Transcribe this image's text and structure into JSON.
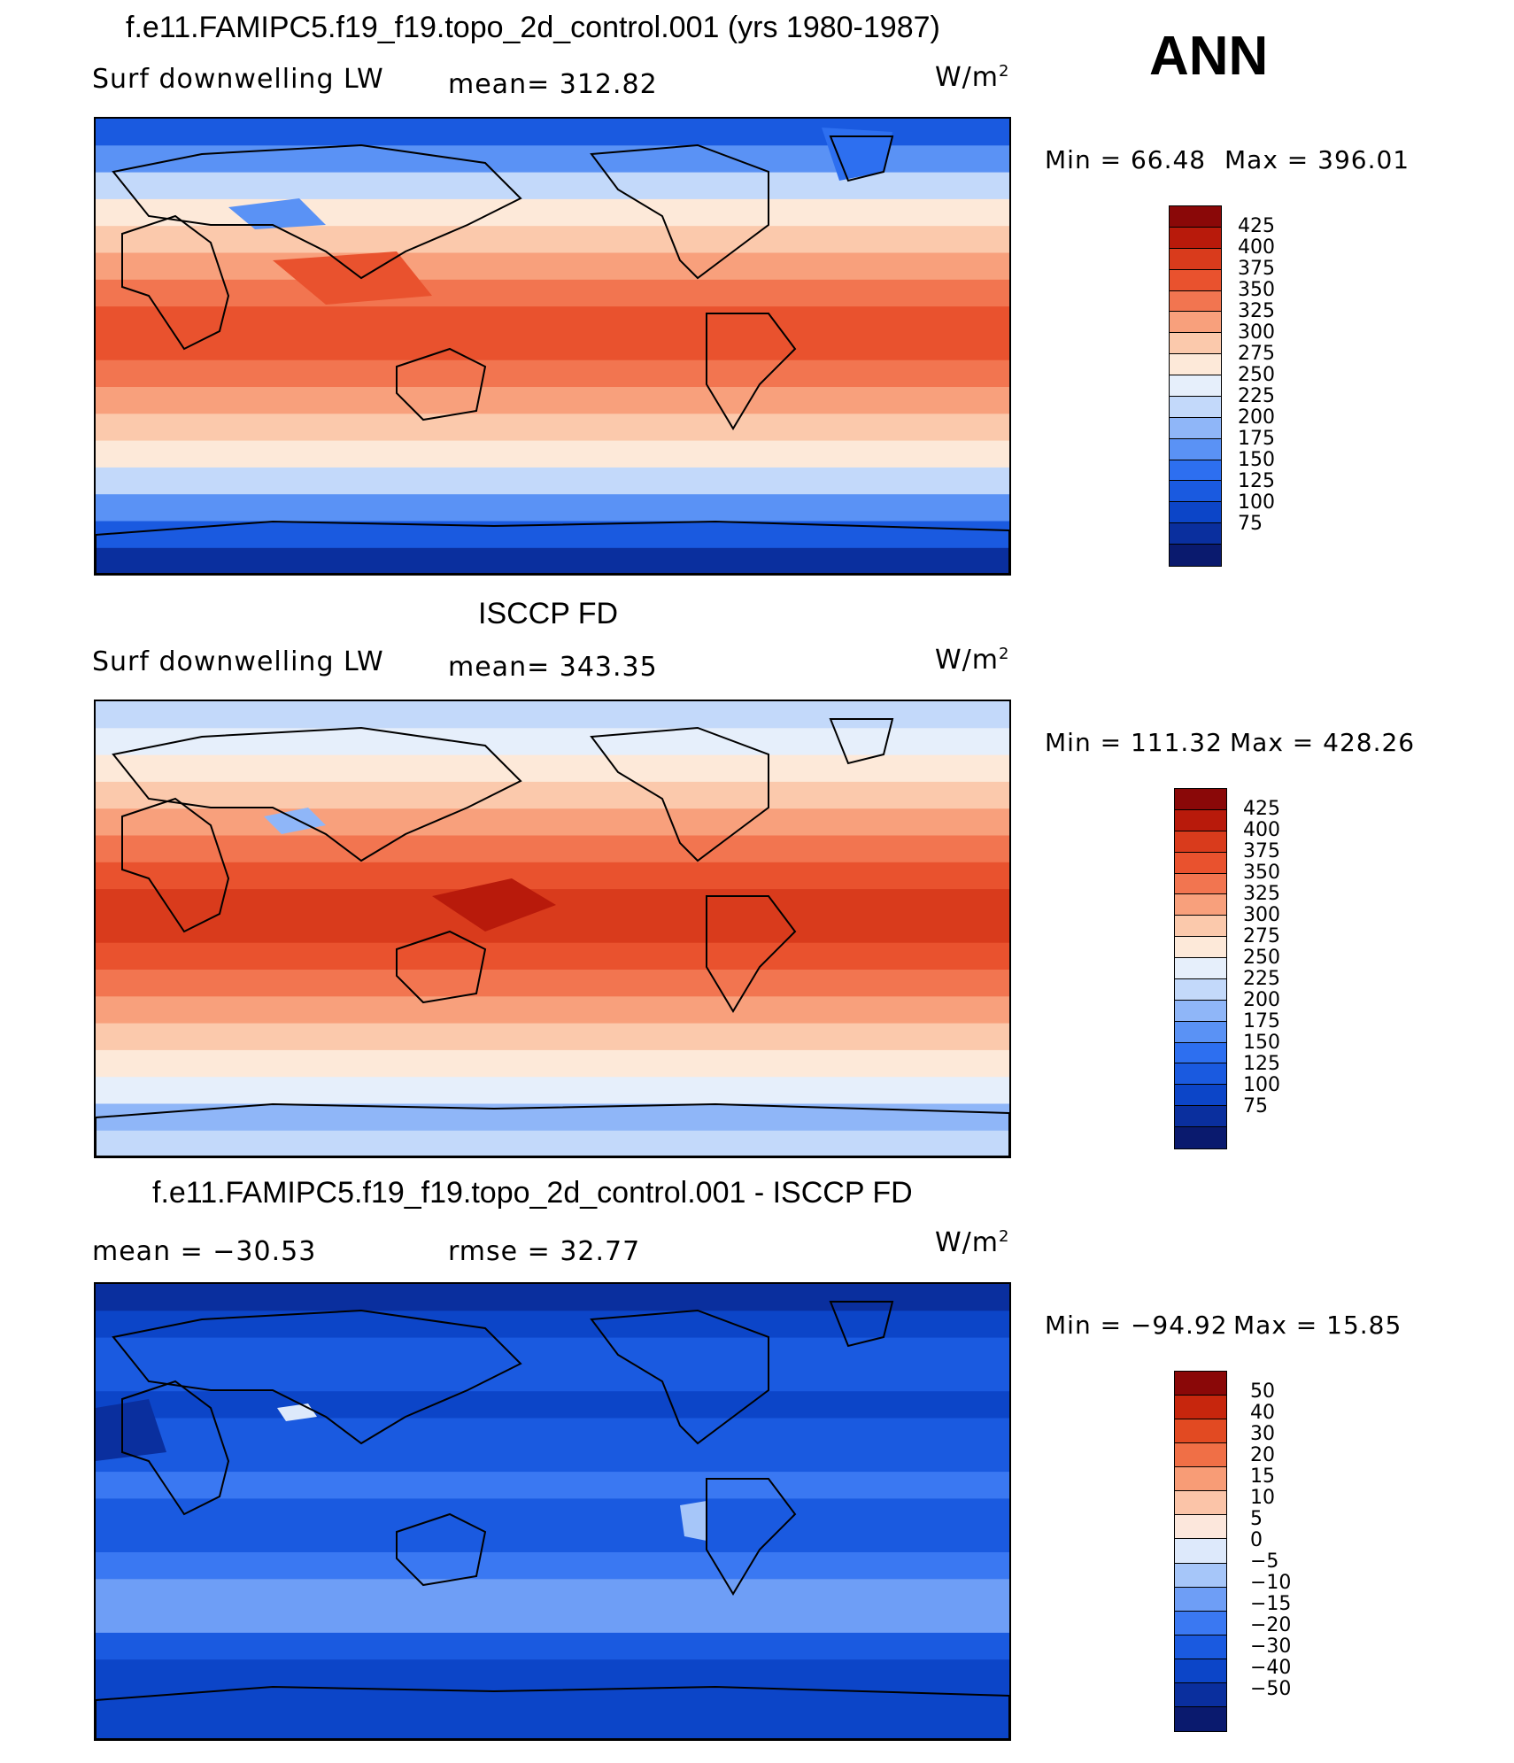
{
  "season": "ANN",
  "palette_full": [
    "#0a1a6e",
    "#0a2f9e",
    "#0c45c8",
    "#1a5ae0",
    "#2d6ff0",
    "#5a92f5",
    "#8fb6f8",
    "#c3d9fa",
    "#e6effb",
    "#fde9d9",
    "#fbc9ac",
    "#f8a07c",
    "#f27550",
    "#e9522e",
    "#d93b1c",
    "#b81a0b",
    "#8a0808"
  ],
  "palette_diff": [
    "#0a1a6e",
    "#0a2f9e",
    "#0c45c8",
    "#1a5ae0",
    "#3a78f2",
    "#6e9ef6",
    "#a6c6f9",
    "#dde9fb",
    "#fce7dc",
    "#fbc4a8",
    "#f89c76",
    "#f06f46",
    "#e24a22",
    "#c7260d",
    "#8a0808"
  ],
  "panels": [
    {
      "title": "f.e11.FAMIPC5.f19_f19.topo_2d_control.001 (yrs 1980-1987)",
      "left_label": "Surf  downwelling  LW",
      "center_label": "mean=  312.82",
      "units": "W/m",
      "units_sup": "2",
      "min_label": "Min  =    66.48",
      "max_label": "Max  =  396.01",
      "colorbar_labels": [
        "425",
        "400",
        "375",
        "350",
        "325",
        "300",
        "275",
        "250",
        "225",
        "200",
        "175",
        "150",
        "125",
        "100",
        "75"
      ],
      "field": "model"
    },
    {
      "title": "ISCCP FD",
      "left_label": "Surf  downwelling  LW",
      "center_label": "mean=  343.35",
      "units": "W/m",
      "units_sup": "2",
      "min_label": "Min  =  111.32",
      "max_label": "Max  =  428.26",
      "colorbar_labels": [
        "425",
        "400",
        "375",
        "350",
        "325",
        "300",
        "275",
        "250",
        "225",
        "200",
        "175",
        "150",
        "125",
        "100",
        "75"
      ],
      "field": "obs"
    },
    {
      "title": "f.e11.FAMIPC5.f19_f19.topo_2d_control.001 - ISCCP FD",
      "left_label": "mean  =  −30.53",
      "center_label": "rmse  =    32.77",
      "units": "W/m",
      "units_sup": "2",
      "min_label": "Min  =  −94.92",
      "max_label": "Max  =    15.85",
      "colorbar_labels": [
        "50",
        "40",
        "30",
        "20",
        "15",
        "10",
        "5",
        "0",
        "−5",
        "−10",
        "−15",
        "−20",
        "−30",
        "−40",
        "−50"
      ],
      "field": "diff"
    }
  ]
}
